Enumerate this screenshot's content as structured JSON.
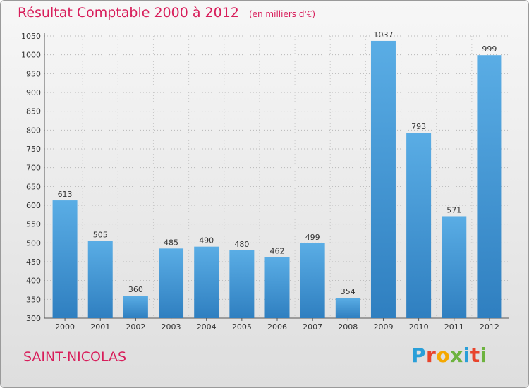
{
  "header": {
    "title": "Résultat Comptable 2000 à 2012",
    "subtitle": "(en milliers d'€)"
  },
  "footer": {
    "city": "SAINT-NICOLAS",
    "logo_letters": [
      "P",
      "r",
      "o",
      "x",
      "i",
      "t",
      "i"
    ],
    "logo_colors": [
      "#2a9fd8",
      "#e8442c",
      "#f5a800",
      "#6db33f",
      "#2a9fd8",
      "#e8442c",
      "#6db33f"
    ]
  },
  "chart_data": {
    "type": "bar",
    "title": "Résultat Comptable 2000 à 2012",
    "subtitle": "(en milliers d'€)",
    "categories": [
      "2000",
      "2001",
      "2002",
      "2003",
      "2004",
      "2005",
      "2006",
      "2007",
      "2008",
      "2009",
      "2010",
      "2011",
      "2012"
    ],
    "values": [
      613,
      505,
      360,
      485,
      490,
      480,
      462,
      499,
      354,
      1037,
      793,
      571,
      999
    ],
    "ylim": [
      300,
      1050
    ],
    "yticks": [
      300,
      350,
      400,
      450,
      500,
      550,
      600,
      650,
      700,
      750,
      800,
      850,
      900,
      950,
      1000,
      1050
    ],
    "grid": true,
    "bar_color": "#3b96d6"
  }
}
